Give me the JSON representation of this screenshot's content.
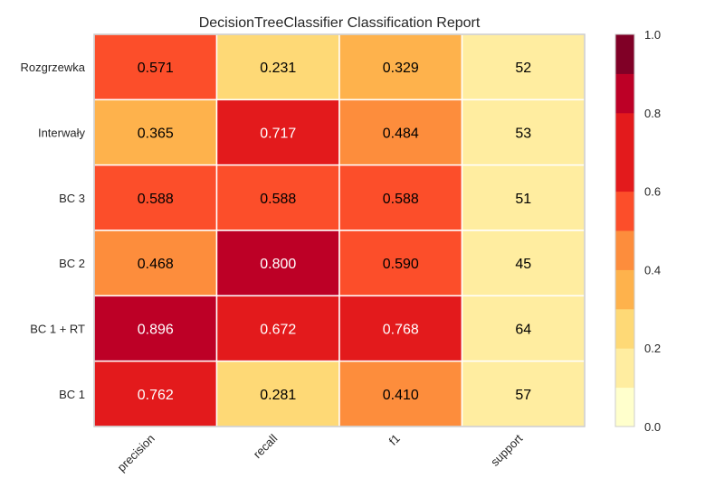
{
  "chart_data": {
    "type": "heatmap",
    "title": "DecisionTreeClassifier Classification Report",
    "columns": [
      "precision",
      "recall",
      "f1",
      "support"
    ],
    "rows": [
      "Rozgrzewka",
      "Interwały",
      "BC 3",
      "BC 2",
      "BC 1 + RT",
      "BC 1"
    ],
    "values": [
      [
        "0.571",
        "0.231",
        "0.329",
        "52"
      ],
      [
        "0.365",
        "0.717",
        "0.484",
        "53"
      ],
      [
        "0.588",
        "0.588",
        "0.588",
        "51"
      ],
      [
        "0.468",
        "0.800",
        "0.590",
        "45"
      ],
      [
        "0.896",
        "0.672",
        "0.768",
        "64"
      ],
      [
        "0.762",
        "0.281",
        "0.410",
        "57"
      ]
    ],
    "support_color_value": 0.15,
    "colorbar": {
      "ticks": [
        "0.0",
        "0.2",
        "0.4",
        "0.6",
        "0.8",
        "1.0"
      ],
      "range": [
        0,
        1
      ],
      "bins": 10,
      "colors": [
        "#ffffcc",
        "#ffeda0",
        "#fed976",
        "#feb24c",
        "#fd8d3c",
        "#fc4e2a",
        "#e31a1c",
        "#e31a1c",
        "#bd0026",
        "#800026"
      ]
    },
    "legend": "right colorbar",
    "grid": false
  }
}
